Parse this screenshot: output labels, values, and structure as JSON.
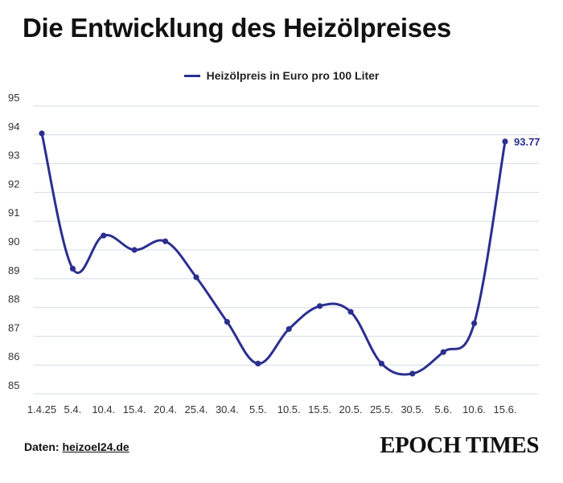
{
  "title": "Die Entwicklung des Heizölpreises",
  "legend_label": "Heizölpreis in Euro pro 100 Liter",
  "source": {
    "label": "Daten:",
    "link": "heizoel24.de"
  },
  "brand": "EPOCH TIMES",
  "colors": {
    "line": "#2a2f8f",
    "grid": "#d6dbe8",
    "text": "#333333"
  },
  "chart_data": {
    "type": "line",
    "title": "Die Entwicklung des Heizölpreises",
    "xlabel": "",
    "ylabel": "",
    "ylim": [
      85,
      95
    ],
    "yticks": [
      85,
      86,
      87,
      88,
      89,
      90,
      91,
      92,
      93,
      94,
      95
    ],
    "categories": [
      "1.4.25",
      "5.4.",
      "10.4.",
      "15.4.",
      "20.4.",
      "25.4.",
      "30.4.",
      "5.5.",
      "10.5.",
      "15.5.",
      "20.5.",
      "25.5.",
      "30.5.",
      "5.6.",
      "10.6.",
      "15.6."
    ],
    "series": [
      {
        "name": "Heizölpreis in Euro pro 100 Liter",
        "values": [
          94.05,
          89.35,
          90.5,
          90.0,
          90.3,
          89.05,
          87.5,
          86.05,
          87.25,
          88.05,
          87.85,
          86.05,
          85.7,
          86.45,
          87.45,
          93.77
        ]
      }
    ],
    "data_labels": [
      {
        "index": 15,
        "text": "93.77"
      }
    ]
  }
}
